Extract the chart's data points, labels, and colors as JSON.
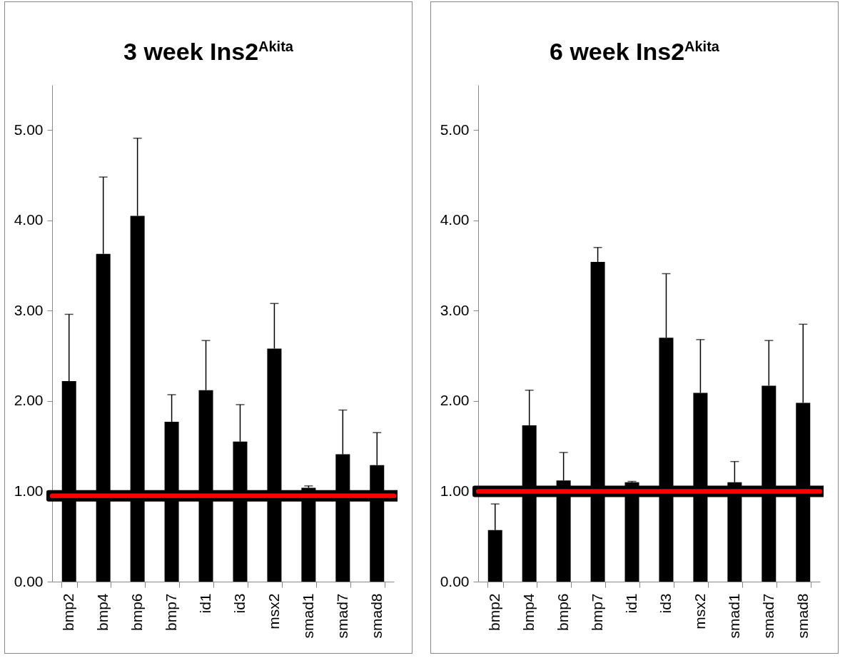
{
  "chart_data": [
    {
      "type": "bar",
      "title": "3 week Ins2$^{Akita}$",
      "categories": [
        "bmp2",
        "bmp4",
        "bmp6",
        "bmp7",
        "id1",
        "id3",
        "msx2",
        "smad1",
        "smad7",
        "smad8"
      ],
      "values": [
        2.22,
        3.63,
        4.05,
        1.77,
        2.12,
        1.55,
        2.58,
        1.04,
        1.41,
        1.29
      ],
      "errors": [
        [
          2.22,
          2.96
        ],
        [
          3.63,
          4.48
        ],
        [
          4.05,
          4.91
        ],
        [
          1.77,
          2.07
        ],
        [
          2.12,
          2.67
        ],
        [
          1.55,
          1.96
        ],
        [
          2.58,
          3.08
        ],
        [
          1.04,
          1.06
        ],
        [
          1.41,
          1.9
        ],
        [
          1.29,
          1.65
        ]
      ],
      "color": "#000000",
      "ylim": [
        0,
        5.5
      ],
      "yticks": [
        {
          "value": 0,
          "label": "0.00"
        },
        {
          "value": 1,
          "label": "1.00"
        },
        {
          "value": 2,
          "label": "2.00"
        },
        {
          "value": 3,
          "label": "3.00"
        },
        {
          "value": 4,
          "label": "4.00"
        },
        {
          "value": 5,
          "label": "5.00"
        }
      ],
      "grid": false,
      "ref_lines": [
        {
          "axis": "y",
          "value": 0.95,
          "label": null,
          "color": "#ff0000"
        }
      ]
    },
    {
      "type": "bar",
      "title": "6 week Ins2$^{Akita}$",
      "categories": [
        "bmp2",
        "bmp4",
        "bmp6",
        "bmp7",
        "id1",
        "id3",
        "msx2",
        "smad1",
        "smad7",
        "smad8"
      ],
      "values": [
        0.57,
        1.73,
        1.12,
        3.54,
        1.1,
        2.7,
        2.09,
        1.1,
        2.17,
        1.98
      ],
      "errors": [
        [
          0.57,
          0.86
        ],
        [
          1.73,
          2.12
        ],
        [
          1.12,
          1.43
        ],
        [
          3.54,
          3.7
        ],
        [
          1.1,
          1.11
        ],
        [
          2.7,
          3.41
        ],
        [
          2.09,
          2.68
        ],
        [
          1.1,
          1.33
        ],
        [
          2.17,
          2.67
        ],
        [
          1.98,
          2.85
        ]
      ],
      "color": "#000000",
      "ylim": [
        0,
        5.5
      ],
      "yticks": [
        {
          "value": 0,
          "label": "0.00"
        },
        {
          "value": 1,
          "label": "1.00"
        },
        {
          "value": 2,
          "label": "2.00"
        },
        {
          "value": 3,
          "label": "3.00"
        },
        {
          "value": 4,
          "label": "4.00"
        },
        {
          "value": 5,
          "label": "5.00"
        }
      ],
      "grid": false,
      "ref_lines": [
        {
          "axis": "y",
          "value": 1.0,
          "label": null,
          "color": "#ff0000"
        }
      ]
    }
  ]
}
